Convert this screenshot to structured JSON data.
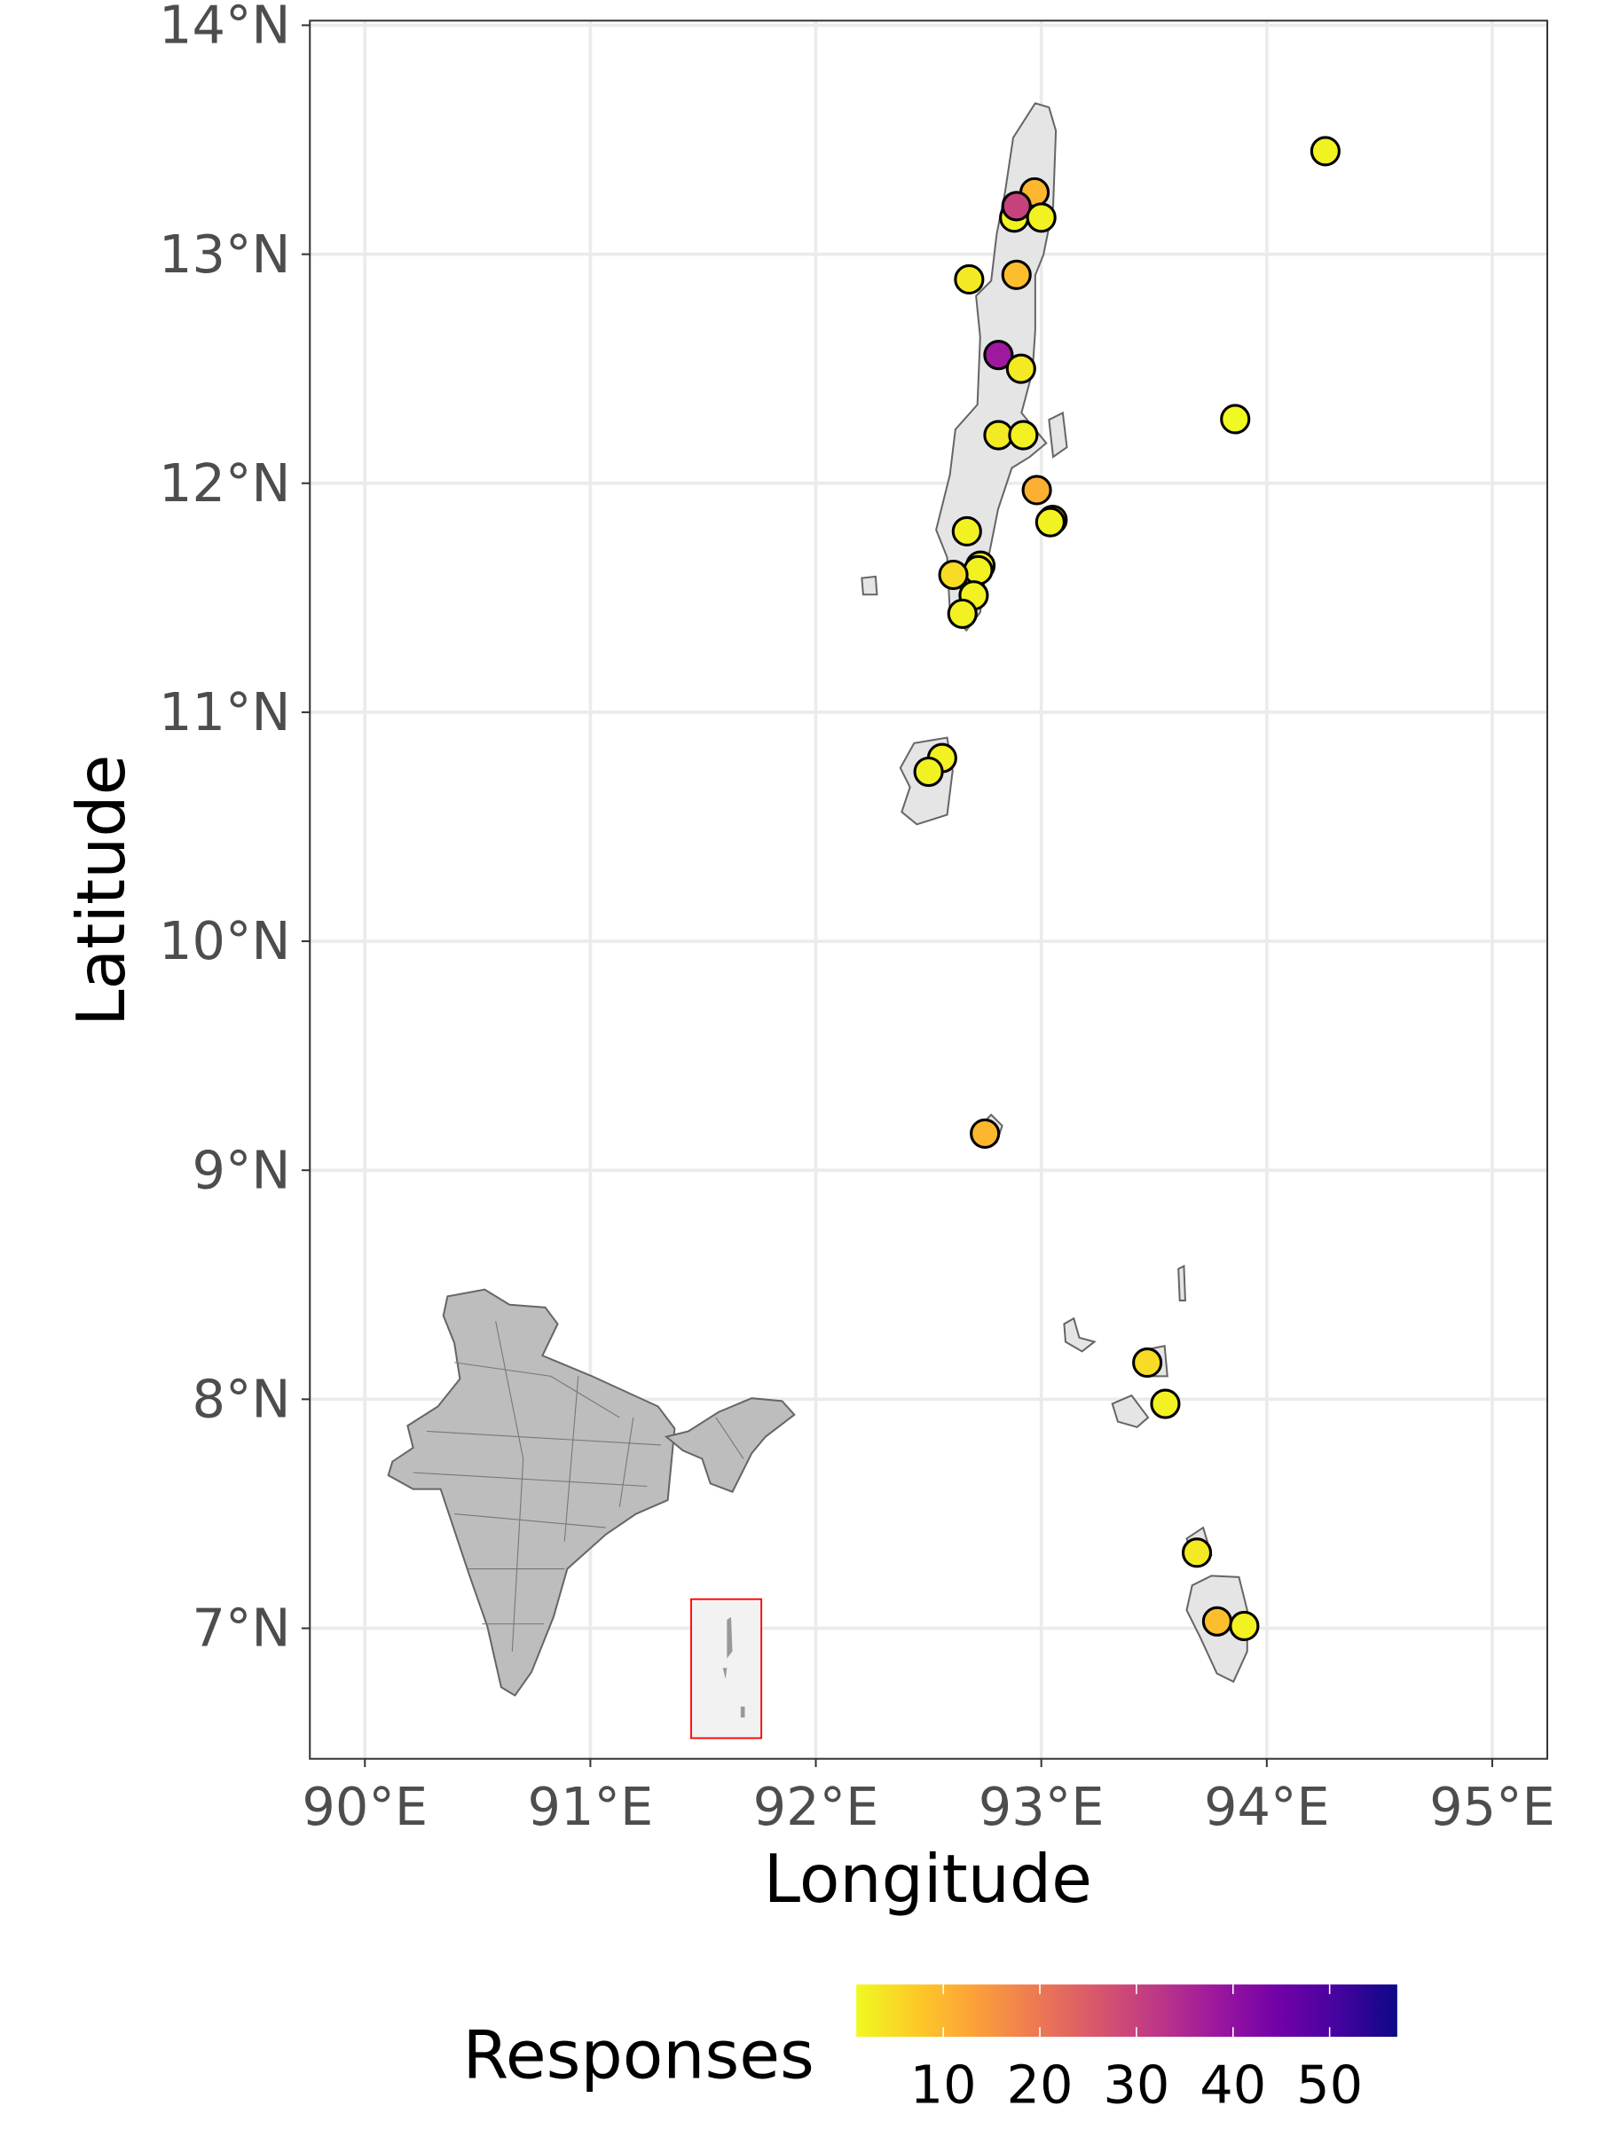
{
  "chart_data": {
    "type": "scatter",
    "subtype": "map",
    "xlabel": "Longitude",
    "ylabel": "Latitude",
    "xlim": [
      89.756,
      95.244
    ],
    "ylim": [
      6.43,
      14.02
    ],
    "x_ticks": [
      90,
      91,
      92,
      93,
      94,
      95
    ],
    "x_tick_labels": [
      "90°E",
      "91°E",
      "92°E",
      "93°E",
      "94°E",
      "95°E"
    ],
    "y_ticks": [
      7,
      8,
      9,
      10,
      11,
      12,
      13,
      14
    ],
    "y_tick_labels": [
      "7°N",
      "8°N",
      "9°N",
      "10°N",
      "11°N",
      "12°N",
      "13°N",
      "14°N"
    ],
    "grid": true,
    "legend": {
      "title": "Responses",
      "placement": "bottom",
      "range": [
        1,
        57
      ],
      "ticks": [
        10,
        20,
        30,
        40,
        50
      ],
      "tick_labels": [
        "10",
        "20",
        "30",
        "40",
        "50"
      ],
      "palette": "plasma-reversed",
      "low_color": "#f0f921",
      "high_color": "#0d0887"
    },
    "points": [
      {
        "lon": 94.26,
        "lat": 13.45,
        "responses": 2
      },
      {
        "lon": 92.97,
        "lat": 13.27,
        "responses": 10
      },
      {
        "lon": 92.88,
        "lat": 13.16,
        "responses": 2
      },
      {
        "lon": 92.89,
        "lat": 13.21,
        "responses": 30
      },
      {
        "lon": 93.0,
        "lat": 13.16,
        "responses": 2
      },
      {
        "lon": 92.89,
        "lat": 12.91,
        "responses": 9
      },
      {
        "lon": 92.68,
        "lat": 12.89,
        "responses": 3
      },
      {
        "lon": 92.81,
        "lat": 12.56,
        "responses": 38
      },
      {
        "lon": 92.91,
        "lat": 12.5,
        "responses": 3
      },
      {
        "lon": 93.86,
        "lat": 12.28,
        "responses": 1
      },
      {
        "lon": 92.81,
        "lat": 12.21,
        "responses": 3
      },
      {
        "lon": 92.92,
        "lat": 12.21,
        "responses": 2
      },
      {
        "lon": 92.98,
        "lat": 11.97,
        "responses": 11
      },
      {
        "lon": 93.05,
        "lat": 11.84,
        "responses": 9
      },
      {
        "lon": 93.04,
        "lat": 11.83,
        "responses": 2
      },
      {
        "lon": 92.67,
        "lat": 11.79,
        "responses": 2
      },
      {
        "lon": 92.73,
        "lat": 11.64,
        "responses": 3
      },
      {
        "lon": 92.72,
        "lat": 11.62,
        "responses": 2
      },
      {
        "lon": 92.61,
        "lat": 11.6,
        "responses": 5
      },
      {
        "lon": 92.7,
        "lat": 11.51,
        "responses": 2
      },
      {
        "lon": 92.65,
        "lat": 11.43,
        "responses": 2
      },
      {
        "lon": 92.56,
        "lat": 10.8,
        "responses": 2
      },
      {
        "lon": 92.5,
        "lat": 10.74,
        "responses": 2
      },
      {
        "lon": 92.75,
        "lat": 9.16,
        "responses": 10
      },
      {
        "lon": 93.47,
        "lat": 8.16,
        "responses": 5
      },
      {
        "lon": 93.55,
        "lat": 7.98,
        "responses": 2
      },
      {
        "lon": 93.69,
        "lat": 7.33,
        "responses": 3
      },
      {
        "lon": 93.78,
        "lat": 7.03,
        "responses": 9
      },
      {
        "lon": 93.9,
        "lat": 7.01,
        "responses": 2
      }
    ]
  }
}
